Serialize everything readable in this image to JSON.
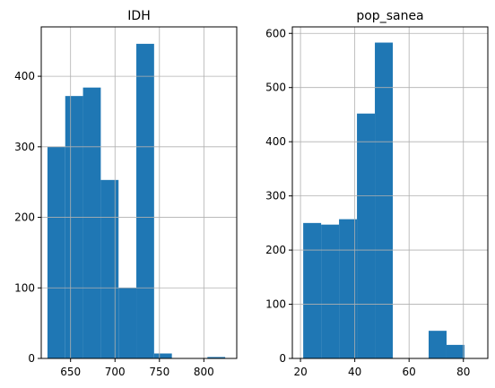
{
  "chart_data": [
    {
      "type": "bar",
      "title": "IDH",
      "color": "#1f77b4",
      "grid": true,
      "xlim": [
        617,
        837
      ],
      "ylim": [
        0,
        470
      ],
      "xticks": [
        650,
        700,
        750,
        800
      ],
      "yticks": [
        0,
        100,
        200,
        300,
        400
      ],
      "bins": [
        {
          "start": 624,
          "end": 644,
          "value": 300
        },
        {
          "start": 644,
          "end": 664,
          "value": 372
        },
        {
          "start": 664,
          "end": 684,
          "value": 384
        },
        {
          "start": 684,
          "end": 704,
          "value": 253
        },
        {
          "start": 704,
          "end": 724,
          "value": 100
        },
        {
          "start": 724,
          "end": 744,
          "value": 446
        },
        {
          "start": 744,
          "end": 764,
          "value": 7
        },
        {
          "start": 764,
          "end": 784,
          "value": 0
        },
        {
          "start": 784,
          "end": 804,
          "value": 0
        },
        {
          "start": 804,
          "end": 824,
          "value": 2
        }
      ]
    },
    {
      "type": "bar",
      "title": "pop_sanea",
      "color": "#1f77b4",
      "grid": true,
      "xlim": [
        17,
        89
      ],
      "ylim": [
        0,
        612
      ],
      "xticks": [
        20,
        40,
        60,
        80
      ],
      "yticks": [
        0,
        100,
        200,
        300,
        400,
        500,
        600
      ],
      "bins": [
        {
          "start": 21,
          "end": 27.6,
          "value": 250
        },
        {
          "start": 27.6,
          "end": 34.2,
          "value": 247
        },
        {
          "start": 34.2,
          "end": 40.8,
          "value": 257
        },
        {
          "start": 40.8,
          "end": 47.4,
          "value": 452
        },
        {
          "start": 47.4,
          "end": 54,
          "value": 583
        },
        {
          "start": 54,
          "end": 60.6,
          "value": 0
        },
        {
          "start": 60.6,
          "end": 67.2,
          "value": 0
        },
        {
          "start": 67.2,
          "end": 73.8,
          "value": 51
        },
        {
          "start": 73.8,
          "end": 80.4,
          "value": 25
        },
        {
          "start": 80.4,
          "end": 87,
          "value": 0
        }
      ]
    }
  ]
}
